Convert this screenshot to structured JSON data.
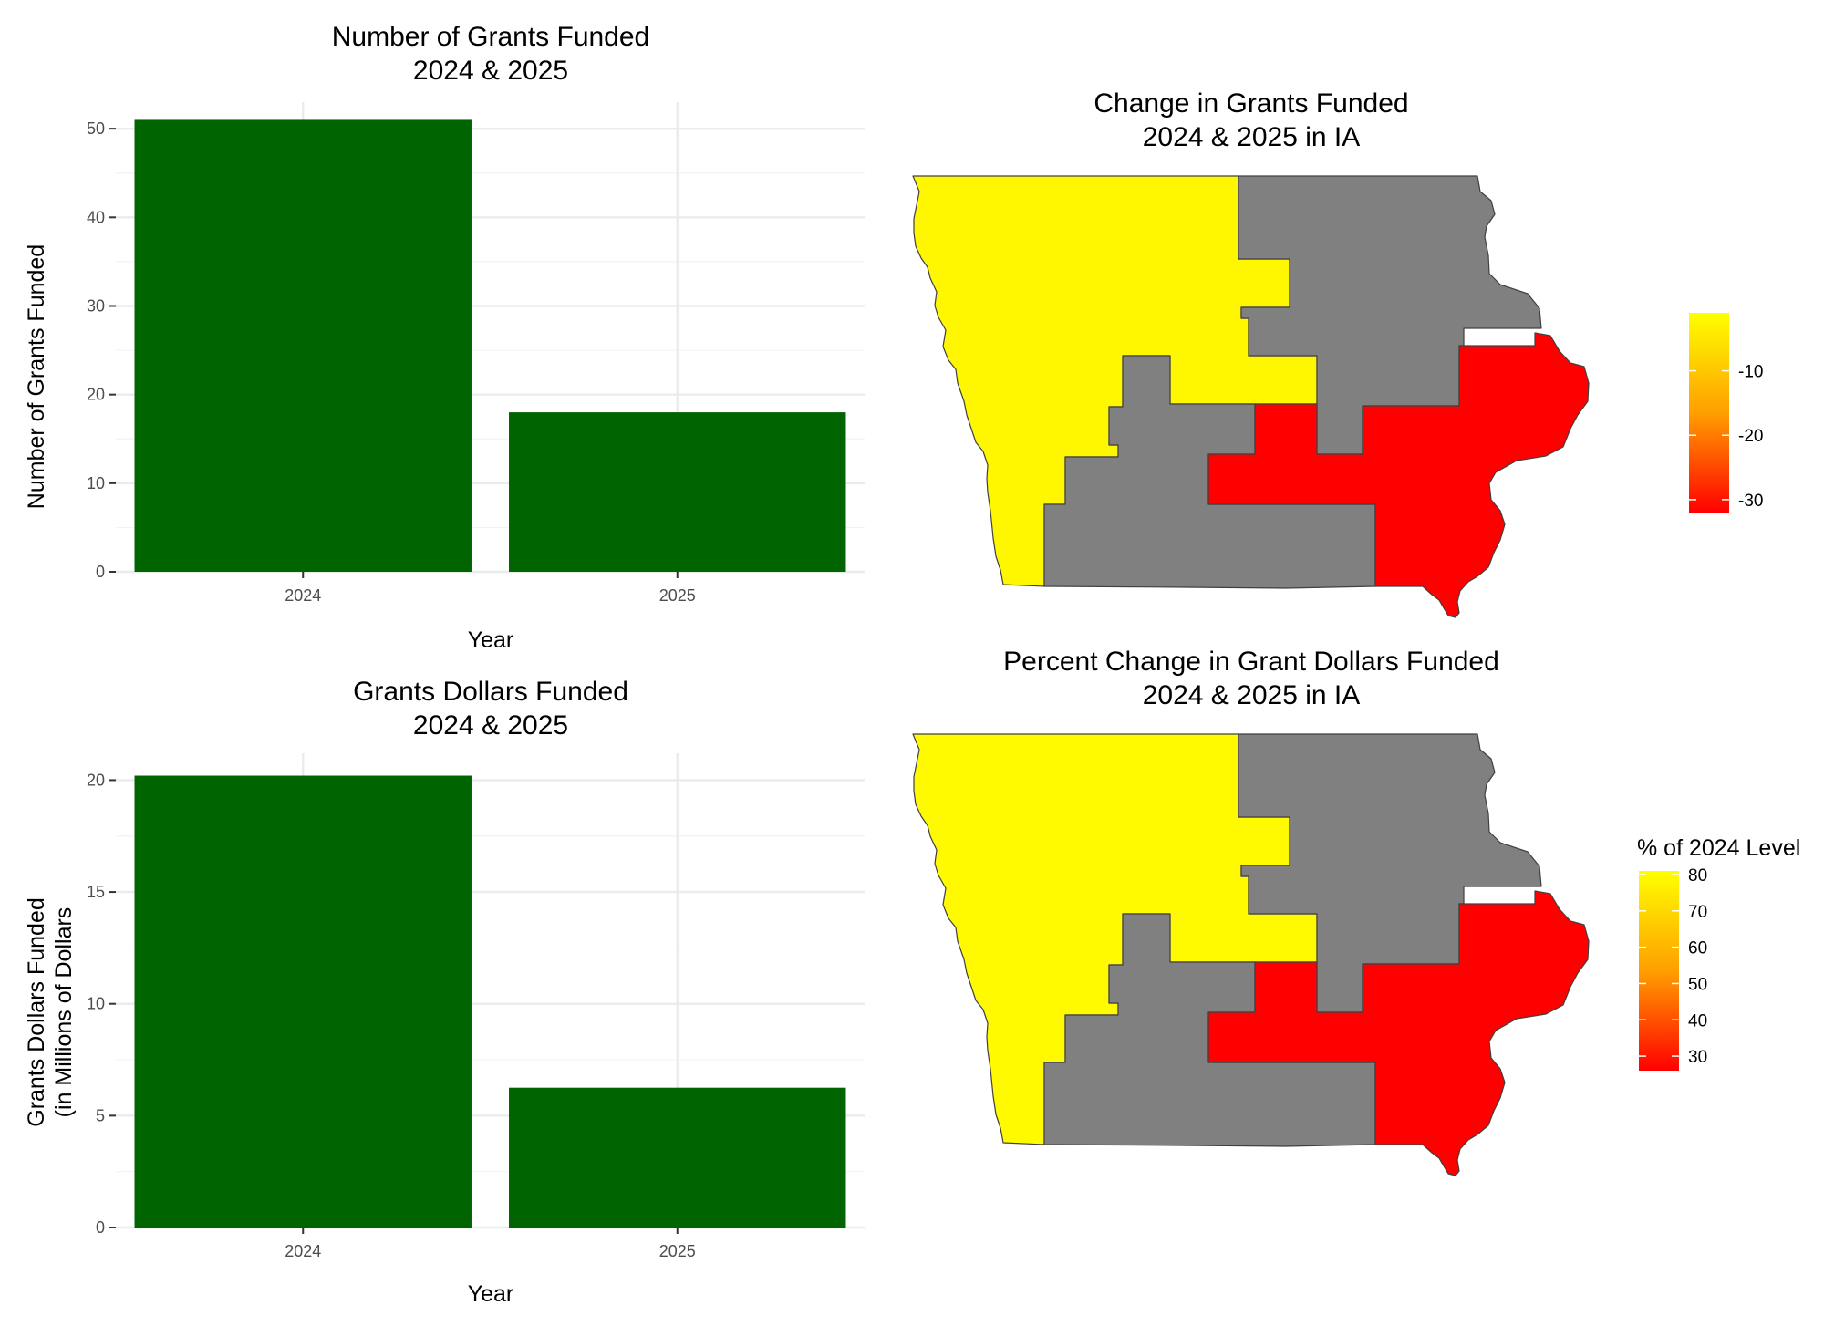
{
  "colors": {
    "bar_fill": "#006400",
    "grid": "#ebebeb",
    "tick_text": "#4d4d4d",
    "text": "#000000",
    "region_no_data": "#808080",
    "region_high": "#ffff00",
    "region_low": "#ff0000",
    "region_outline": "#404040"
  },
  "chart_data": [
    {
      "type": "bar",
      "title": "Number of Grants Funded",
      "subtitle": "2024 & 2025",
      "xlabel": "Year",
      "ylabel": "Number of Grants Funded",
      "categories": [
        "2024",
        "2025"
      ],
      "values": [
        51,
        18
      ],
      "ylim": [
        0,
        53
      ],
      "yticks": [
        0,
        10,
        20,
        30,
        40,
        50
      ],
      "grid": true
    },
    {
      "type": "bar",
      "title": "Grants Dollars Funded",
      "subtitle": "2024 & 2025",
      "xlabel": "Year",
      "ylabel": "Grants Dollars Funded",
      "ylabel2": "(in Millions of Dollars",
      "categories": [
        "2024",
        "2025"
      ],
      "values": [
        20.2,
        6.25
      ],
      "ylim": [
        0,
        21.2
      ],
      "yticks": [
        0,
        5,
        10,
        15,
        20
      ],
      "grid": true
    },
    {
      "type": "choropleth",
      "title": "Change in Grants Funded",
      "subtitle": "2024 & 2025 in IA",
      "regions": [
        {
          "id": "west",
          "value": -2
        },
        {
          "id": "northeast",
          "value": null
        },
        {
          "id": "central",
          "value": null
        },
        {
          "id": "east",
          "value": -32
        }
      ],
      "legend": {
        "title": "",
        "position": "right",
        "range": [
          -32,
          -1
        ],
        "ticks": [
          -10,
          -20,
          -30
        ],
        "colors": [
          "#ff0000",
          "#ffff00"
        ]
      }
    },
    {
      "type": "choropleth",
      "title": "Percent Change in Grant Dollars Funded",
      "subtitle": "2024 & 2025 in IA",
      "regions": [
        {
          "id": "west",
          "value": 80
        },
        {
          "id": "northeast",
          "value": null
        },
        {
          "id": "central",
          "value": null
        },
        {
          "id": "east",
          "value": 26
        }
      ],
      "legend": {
        "title": "% of 2024 Level",
        "position": "right",
        "range": [
          26,
          81
        ],
        "ticks": [
          80,
          70,
          60,
          50,
          40,
          30
        ],
        "colors": [
          "#ff0000",
          "#ffff00"
        ]
      }
    }
  ]
}
